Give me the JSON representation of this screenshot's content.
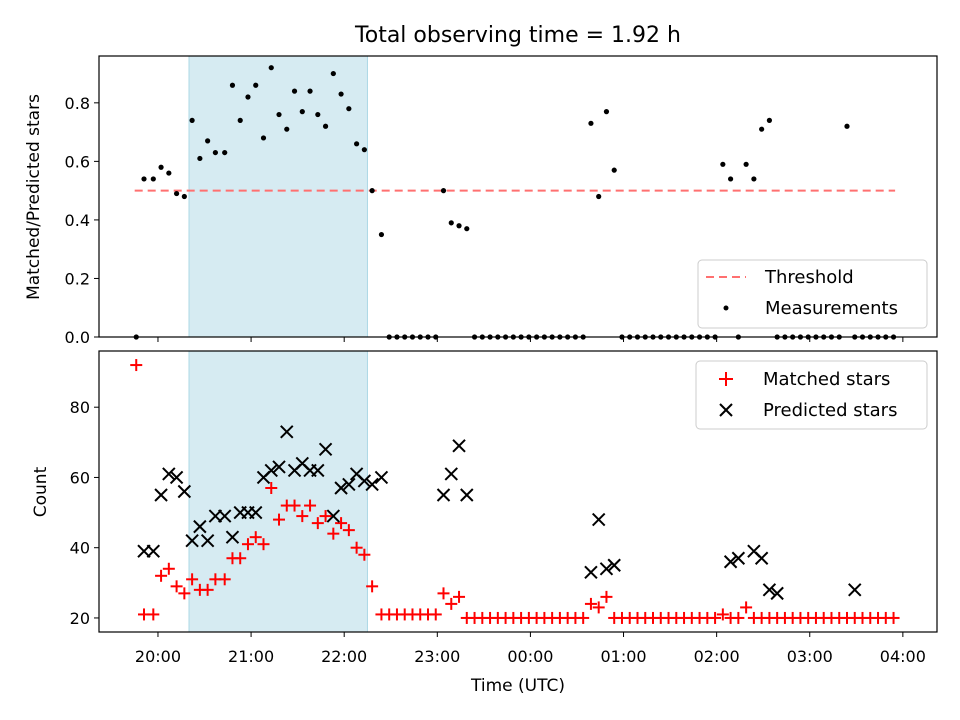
{
  "chart_data": [
    {
      "type": "scatter",
      "title": "Total observing time = 1.92 h",
      "ylabel": "Matched/Predicted stars",
      "ylim": [
        0,
        0.96
      ],
      "yticks": [
        "0.0",
        "0.2",
        "0.4",
        "0.6",
        "0.8"
      ],
      "shaded_region_x": [
        "20:20",
        "22:15"
      ],
      "threshold": {
        "name": "Threshold",
        "value": 0.5,
        "x_range": [
          "19:45",
          "03:55"
        ],
        "color": "#ff7070"
      },
      "legend": {
        "position": "lower right",
        "entries": [
          "Threshold",
          "Measurements"
        ]
      },
      "series": [
        {
          "name": "Measurements",
          "color": "#000000",
          "marker": "dot",
          "x": [
            "19:46",
            "19:51",
            "19:57",
            "20:02",
            "20:07",
            "20:12",
            "20:17",
            "20:22",
            "20:27",
            "20:32",
            "20:37",
            "20:43",
            "20:48",
            "20:53",
            "20:58",
            "21:03",
            "21:08",
            "21:13",
            "21:18",
            "21:23",
            "21:28",
            "21:33",
            "21:38",
            "21:43",
            "21:48",
            "21:53",
            "21:58",
            "22:03",
            "22:08",
            "22:13",
            "22:18",
            "22:24",
            "22:29",
            "22:34",
            "22:39",
            "22:44",
            "22:49",
            "22:54",
            "22:59",
            "23:04",
            "23:09",
            "23:14",
            "23:19",
            "23:24",
            "23:29",
            "23:34",
            "23:39",
            "23:44",
            "23:49",
            "23:54",
            "23:59",
            "00:04",
            "00:09",
            "00:14",
            "00:19",
            "00:24",
            "00:29",
            "00:34",
            "00:39",
            "00:44",
            "00:49",
            "00:54",
            "00:59",
            "01:04",
            "01:09",
            "01:14",
            "01:19",
            "01:24",
            "01:29",
            "01:34",
            "01:39",
            "01:44",
            "01:49",
            "01:54",
            "01:59",
            "02:04",
            "02:09",
            "02:14",
            "02:19",
            "02:24",
            "02:29",
            "02:34",
            "02:39",
            "02:44",
            "02:49",
            "02:54",
            "02:59",
            "03:04",
            "03:09",
            "03:14",
            "03:19",
            "03:24",
            "03:29",
            "03:34",
            "03:39",
            "03:44",
            "03:49",
            "03:54"
          ],
          "y": [
            0.0,
            0.54,
            0.54,
            0.58,
            0.56,
            0.49,
            0.48,
            0.74,
            0.61,
            0.67,
            0.63,
            0.63,
            0.86,
            0.74,
            0.82,
            0.86,
            0.68,
            0.92,
            0.76,
            0.71,
            0.84,
            0.77,
            0.84,
            0.76,
            0.72,
            0.9,
            0.83,
            0.78,
            0.66,
            0.64,
            0.5,
            0.35,
            0.0,
            0.0,
            0.0,
            0.0,
            0.0,
            0.0,
            0.0,
            0.5,
            0.39,
            0.38,
            0.37,
            0.0,
            0.0,
            0.0,
            0.0,
            0.0,
            0.0,
            0.0,
            0.0,
            0.0,
            0.0,
            0.0,
            0.0,
            0.0,
            0.0,
            0.0,
            0.73,
            0.48,
            0.77,
            0.57,
            0.0,
            0.0,
            0.0,
            0.0,
            0.0,
            0.0,
            0.0,
            0.0,
            0.0,
            0.0,
            0.0,
            0.0,
            0.0,
            0.59,
            0.54,
            0.0,
            0.59,
            0.54,
            0.71,
            0.74,
            0.0,
            0.0,
            0.0,
            0.0,
            0.0,
            0.0,
            0.0,
            0.0,
            0.0,
            0.72,
            0.0,
            0.0,
            0.0,
            0.0,
            0.0,
            0.0
          ]
        }
      ]
    },
    {
      "type": "scatter",
      "xlabel": "Time (UTC)",
      "ylabel": "Count",
      "ylim": [
        16,
        96
      ],
      "yticks": [
        "20",
        "40",
        "60",
        "80"
      ],
      "xticks": [
        "20:00",
        "21:00",
        "22:00",
        "23:00",
        "00:00",
        "01:00",
        "02:00",
        "03:00",
        "04:00"
      ],
      "shaded_region_x": [
        "20:20",
        "22:15"
      ],
      "legend": {
        "position": "upper right",
        "entries": [
          "Matched stars",
          "Predicted stars"
        ]
      },
      "series": [
        {
          "name": "Matched stars",
          "color": "#ff0000",
          "marker": "plus",
          "x": [
            "19:46",
            "19:51",
            "19:57",
            "20:02",
            "20:07",
            "20:12",
            "20:17",
            "20:22",
            "20:27",
            "20:32",
            "20:37",
            "20:43",
            "20:48",
            "20:53",
            "20:58",
            "21:03",
            "21:08",
            "21:13",
            "21:18",
            "21:23",
            "21:28",
            "21:33",
            "21:38",
            "21:43",
            "21:48",
            "21:53",
            "21:58",
            "22:03",
            "22:08",
            "22:13",
            "22:18",
            "22:24",
            "22:29",
            "22:34",
            "22:39",
            "22:44",
            "22:49",
            "22:54",
            "22:59",
            "23:04",
            "23:09",
            "23:14",
            "23:19",
            "23:24",
            "23:29",
            "23:34",
            "23:39",
            "23:44",
            "23:49",
            "23:54",
            "23:59",
            "00:04",
            "00:09",
            "00:14",
            "00:19",
            "00:24",
            "00:29",
            "00:34",
            "00:39",
            "00:44",
            "00:49",
            "00:54",
            "00:59",
            "01:04",
            "01:09",
            "01:14",
            "01:19",
            "01:24",
            "01:29",
            "01:34",
            "01:39",
            "01:44",
            "01:49",
            "01:54",
            "01:59",
            "02:04",
            "02:09",
            "02:14",
            "02:19",
            "02:24",
            "02:29",
            "02:34",
            "02:39",
            "02:44",
            "02:49",
            "02:54",
            "02:59",
            "03:04",
            "03:09",
            "03:14",
            "03:19",
            "03:24",
            "03:29",
            "03:34",
            "03:39",
            "03:44",
            "03:49",
            "03:54"
          ],
          "y": [
            92,
            21,
            21,
            32,
            34,
            29,
            27,
            31,
            28,
            28,
            31,
            31,
            37,
            37,
            41,
            43,
            41,
            57,
            48,
            52,
            52,
            49,
            52,
            47,
            49,
            44,
            47,
            45,
            40,
            38,
            29,
            21,
            21,
            21,
            21,
            21,
            21,
            21,
            21,
            27,
            24,
            26,
            20,
            20,
            20,
            20,
            20,
            20,
            20,
            20,
            20,
            20,
            20,
            20,
            20,
            20,
            20,
            20,
            24,
            23,
            26,
            20,
            20,
            20,
            20,
            20,
            20,
            20,
            20,
            20,
            20,
            20,
            20,
            20,
            20,
            21,
            20,
            20,
            23,
            20,
            20,
            20,
            20,
            20,
            20,
            20,
            20,
            20,
            20,
            20,
            20,
            20,
            20,
            20,
            20,
            20,
            20,
            20
          ]
        },
        {
          "name": "Predicted stars",
          "color": "#000000",
          "marker": "x",
          "x": [
            "19:51",
            "19:57",
            "20:02",
            "20:07",
            "20:12",
            "20:17",
            "20:22",
            "20:27",
            "20:32",
            "20:37",
            "20:43",
            "20:48",
            "20:53",
            "20:58",
            "21:03",
            "21:08",
            "21:13",
            "21:18",
            "21:23",
            "21:28",
            "21:33",
            "21:38",
            "21:43",
            "21:48",
            "21:53",
            "21:58",
            "22:03",
            "22:08",
            "22:13",
            "22:18",
            "22:24",
            "23:04",
            "23:09",
            "23:14",
            "23:19",
            "00:39",
            "00:44",
            "00:49",
            "00:54",
            "02:09",
            "02:14",
            "02:24",
            "02:29",
            "02:34",
            "02:39",
            "03:29"
          ],
          "y": [
            39,
            39,
            55,
            61,
            60,
            56,
            42,
            46,
            42,
            49,
            49,
            43,
            50,
            50,
            50,
            60,
            62,
            63,
            73,
            62,
            64,
            62,
            62,
            68,
            49,
            57,
            58,
            61,
            59,
            58,
            60,
            55,
            61,
            69,
            55,
            33,
            48,
            34,
            35,
            36,
            37,
            39,
            37,
            28,
            27,
            28
          ]
        }
      ]
    }
  ]
}
